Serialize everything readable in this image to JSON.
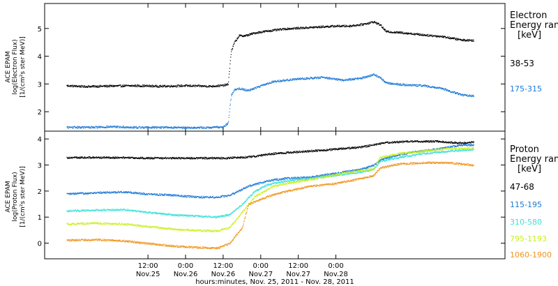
{
  "chart_data": [
    {
      "type": "scatter",
      "panel": "electron",
      "legend_title": [
        "Electron",
        "Energy ran",
        "[keV]"
      ],
      "ylabel": [
        "ACE EPAM",
        "log(Electron Flux)",
        "[1/(cm²s ster MeV)]"
      ],
      "ylim": [
        1.3,
        5.9
      ],
      "yticks": [
        2,
        3,
        4,
        5
      ],
      "series": [
        {
          "name": "38-53",
          "color": "#000000",
          "points": [
            [
              -14,
              2.95
            ],
            [
              -8,
              2.92
            ],
            [
              0,
              2.94
            ],
            [
              8,
              2.95
            ],
            [
              16,
              2.93
            ],
            [
              24,
              2.95
            ],
            [
              32,
              2.93
            ],
            [
              36,
              2.96
            ],
            [
              37.5,
              3.0
            ],
            [
              38.5,
              4.2
            ],
            [
              39.5,
              4.5
            ],
            [
              41,
              4.75
            ],
            [
              43,
              4.75
            ],
            [
              46,
              4.85
            ],
            [
              50,
              4.92
            ],
            [
              56,
              5.0
            ],
            [
              64,
              5.05
            ],
            [
              72,
              5.1
            ],
            [
              76,
              5.1
            ],
            [
              80,
              5.15
            ],
            [
              84,
              5.25
            ],
            [
              86,
              5.15
            ],
            [
              88,
              4.9
            ],
            [
              94,
              4.85
            ],
            [
              100,
              4.78
            ],
            [
              106,
              4.72
            ],
            [
              112,
              4.6
            ],
            [
              116,
              4.58
            ]
          ]
        },
        {
          "name": "175-315",
          "color": "#1a78d8",
          "points": [
            [
              -14,
              1.45
            ],
            [
              -8,
              1.45
            ],
            [
              0,
              1.47
            ],
            [
              8,
              1.45
            ],
            [
              16,
              1.45
            ],
            [
              24,
              1.44
            ],
            [
              32,
              1.44
            ],
            [
              36,
              1.47
            ],
            [
              37.5,
              1.6
            ],
            [
              38.5,
              2.6
            ],
            [
              39.5,
              2.8
            ],
            [
              41,
              2.85
            ],
            [
              44,
              2.78
            ],
            [
              48,
              2.95
            ],
            [
              52,
              3.1
            ],
            [
              60,
              3.2
            ],
            [
              68,
              3.25
            ],
            [
              74,
              3.15
            ],
            [
              80,
              3.22
            ],
            [
              84,
              3.35
            ],
            [
              86,
              3.25
            ],
            [
              88,
              3.05
            ],
            [
              94,
              2.98
            ],
            [
              100,
              2.95
            ],
            [
              106,
              2.85
            ],
            [
              112,
              2.62
            ],
            [
              116,
              2.58
            ]
          ]
        }
      ]
    },
    {
      "type": "scatter",
      "panel": "proton",
      "legend_title": [
        "Proton",
        "Energy ran",
        "[keV]"
      ],
      "ylabel": [
        "ACE EPAM",
        "log(Proton Flux)",
        "[1/(cm²s ster MeV)]"
      ],
      "ylim": [
        -0.6,
        4.3
      ],
      "yticks": [
        0,
        1,
        2,
        3,
        4
      ],
      "series": [
        {
          "name": "47-68",
          "color": "#000000",
          "points": [
            [
              -14,
              3.3
            ],
            [
              0,
              3.3
            ],
            [
              12,
              3.28
            ],
            [
              24,
              3.28
            ],
            [
              36,
              3.28
            ],
            [
              44,
              3.32
            ],
            [
              52,
              3.45
            ],
            [
              60,
              3.52
            ],
            [
              70,
              3.6
            ],
            [
              80,
              3.7
            ],
            [
              88,
              3.88
            ],
            [
              96,
              3.92
            ],
            [
              104,
              3.92
            ],
            [
              112,
              3.85
            ],
            [
              116,
              3.9
            ]
          ]
        },
        {
          "name": "115-195",
          "color": "#1a78d8",
          "points": [
            [
              -14,
              1.9
            ],
            [
              -4,
              1.95
            ],
            [
              4,
              1.98
            ],
            [
              12,
              1.9
            ],
            [
              20,
              1.85
            ],
            [
              28,
              1.78
            ],
            [
              34,
              1.78
            ],
            [
              38,
              1.85
            ],
            [
              44,
              2.2
            ],
            [
              50,
              2.4
            ],
            [
              56,
              2.5
            ],
            [
              64,
              2.55
            ],
            [
              72,
              2.7
            ],
            [
              80,
              2.85
            ],
            [
              84,
              3.0
            ],
            [
              86,
              3.2
            ],
            [
              90,
              3.35
            ],
            [
              96,
              3.5
            ],
            [
              104,
              3.62
            ],
            [
              112,
              3.78
            ],
            [
              116,
              3.78
            ]
          ]
        },
        {
          "name": "310-580",
          "color": "#3be0d8",
          "points": [
            [
              -14,
              1.25
            ],
            [
              -4,
              1.28
            ],
            [
              4,
              1.3
            ],
            [
              12,
              1.2
            ],
            [
              20,
              1.1
            ],
            [
              28,
              1.05
            ],
            [
              34,
              1.02
            ],
            [
              38,
              1.1
            ],
            [
              42,
              1.5
            ],
            [
              46,
              2.0
            ],
            [
              50,
              2.25
            ],
            [
              56,
              2.4
            ],
            [
              64,
              2.5
            ],
            [
              72,
              2.62
            ],
            [
              80,
              2.75
            ],
            [
              84,
              2.85
            ],
            [
              86,
              3.15
            ],
            [
              92,
              3.3
            ],
            [
              100,
              3.45
            ],
            [
              108,
              3.55
            ],
            [
              116,
              3.6
            ]
          ]
        },
        {
          "name": "795-1193",
          "color": "#c8f01e",
          "points": [
            [
              -14,
              0.75
            ],
            [
              -4,
              0.78
            ],
            [
              4,
              0.75
            ],
            [
              12,
              0.65
            ],
            [
              20,
              0.55
            ],
            [
              28,
              0.5
            ],
            [
              34,
              0.48
            ],
            [
              38,
              0.6
            ],
            [
              42,
              1.2
            ],
            [
              46,
              1.8
            ],
            [
              52,
              2.2
            ],
            [
              58,
              2.35
            ],
            [
              66,
              2.5
            ],
            [
              74,
              2.7
            ],
            [
              80,
              2.8
            ],
            [
              84,
              2.85
            ],
            [
              86,
              3.3
            ],
            [
              92,
              3.45
            ],
            [
              100,
              3.55
            ],
            [
              108,
              3.65
            ],
            [
              116,
              3.65
            ]
          ]
        },
        {
          "name": "1060-1900",
          "color": "#f0941e",
          "points": [
            [
              -14,
              0.12
            ],
            [
              -4,
              0.15
            ],
            [
              4,
              0.1
            ],
            [
              12,
              0.0
            ],
            [
              20,
              -0.1
            ],
            [
              28,
              -0.15
            ],
            [
              34,
              -0.18
            ],
            [
              38,
              0.0
            ],
            [
              42,
              0.6
            ],
            [
              44,
              1.5
            ],
            [
              50,
              1.8
            ],
            [
              56,
              2.0
            ],
            [
              64,
              2.2
            ],
            [
              72,
              2.3
            ],
            [
              80,
              2.5
            ],
            [
              84,
              2.6
            ],
            [
              86,
              2.9
            ],
            [
              92,
              3.05
            ],
            [
              100,
              3.1
            ],
            [
              108,
              3.1
            ],
            [
              116,
              3.0
            ]
          ]
        }
      ]
    }
  ],
  "x_axis": {
    "xlim": [
      -21,
      126
    ],
    "ticks": [
      {
        "x": 12,
        "time": "12:00",
        "date": "Nov.25"
      },
      {
        "x": 24,
        "time": "0:00",
        "date": "Nov.26"
      },
      {
        "x": 36,
        "time": "12:00",
        "date": "Nov.26"
      },
      {
        "x": 48,
        "time": "0:00",
        "date": "Nov.27"
      },
      {
        "x": 60,
        "time": "12:00",
        "date": "Nov.27"
      },
      {
        "x": 72,
        "time": "0:00",
        "date": "Nov.28"
      }
    ],
    "label": "hours:minutes, Nov. 25, 2011 - Nov. 28, 2011"
  }
}
